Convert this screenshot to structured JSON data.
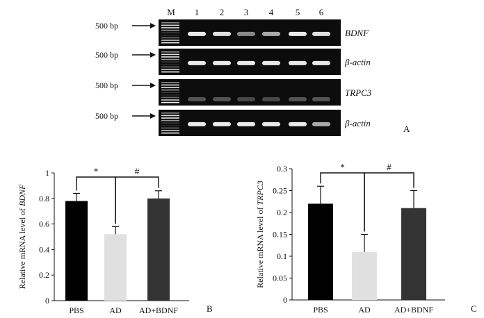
{
  "gel": {
    "lane_labels": [
      "M",
      "1",
      "2",
      "3",
      "4",
      "5",
      "6"
    ],
    "marker_label": "500 bp",
    "panel_letter": "A",
    "rows": [
      {
        "gene": "BDNF",
        "band_intensity": [
          0.9,
          0.85,
          0.45,
          0.6,
          0.9,
          0.85
        ]
      },
      {
        "gene": "β-actin",
        "band_intensity": [
          0.9,
          0.9,
          0.9,
          0.9,
          0.9,
          0.9
        ]
      },
      {
        "gene": "TRPC3",
        "band_intensity": [
          0.2,
          0.2,
          0.15,
          0.15,
          0.2,
          0.2
        ]
      },
      {
        "gene": "β-actin",
        "band_intensity": [
          0.9,
          0.9,
          0.9,
          0.9,
          0.9,
          0.6
        ]
      }
    ]
  },
  "chart_data": [
    {
      "type": "bar",
      "panel_letter": "B",
      "categories": [
        "PBS",
        "AD",
        "AD+BDNF"
      ],
      "values": [
        0.78,
        0.52,
        0.8
      ],
      "errors": [
        0.06,
        0.06,
        0.06
      ],
      "bar_colors": [
        "#000000",
        "#e0e0e0",
        "#333333"
      ],
      "ylabel_prefix": "Relative mRNA level of ",
      "ylabel_gene": "BDNF",
      "ylim": [
        0,
        1
      ],
      "yticks": [
        "0",
        "0.2",
        "0.4",
        "0.6",
        "0.8",
        "1"
      ],
      "tick_values": [
        0,
        0.2,
        0.4,
        0.6,
        0.8,
        1
      ],
      "significance": [
        {
          "from": 0,
          "to": 1,
          "label": "*"
        },
        {
          "from": 1,
          "to": 2,
          "label": "#"
        }
      ]
    },
    {
      "type": "bar",
      "panel_letter": "C",
      "categories": [
        "PBS",
        "AD",
        "AD+BDNF"
      ],
      "values": [
        0.22,
        0.11,
        0.21
      ],
      "errors": [
        0.04,
        0.04,
        0.04
      ],
      "bar_colors": [
        "#000000",
        "#e0e0e0",
        "#333333"
      ],
      "ylabel_prefix": "Relative mRNA level of ",
      "ylabel_gene": "TRPC3",
      "ylim": [
        0,
        0.3
      ],
      "yticks": [
        "0",
        "0.05",
        "0.1",
        "0.15",
        "0.2",
        "0.25",
        "0.3"
      ],
      "tick_values": [
        0,
        0.05,
        0.1,
        0.15,
        0.2,
        0.25,
        0.3
      ],
      "significance": [
        {
          "from": 0,
          "to": 1,
          "label": "*"
        },
        {
          "from": 1,
          "to": 2,
          "label": "#"
        }
      ]
    }
  ]
}
